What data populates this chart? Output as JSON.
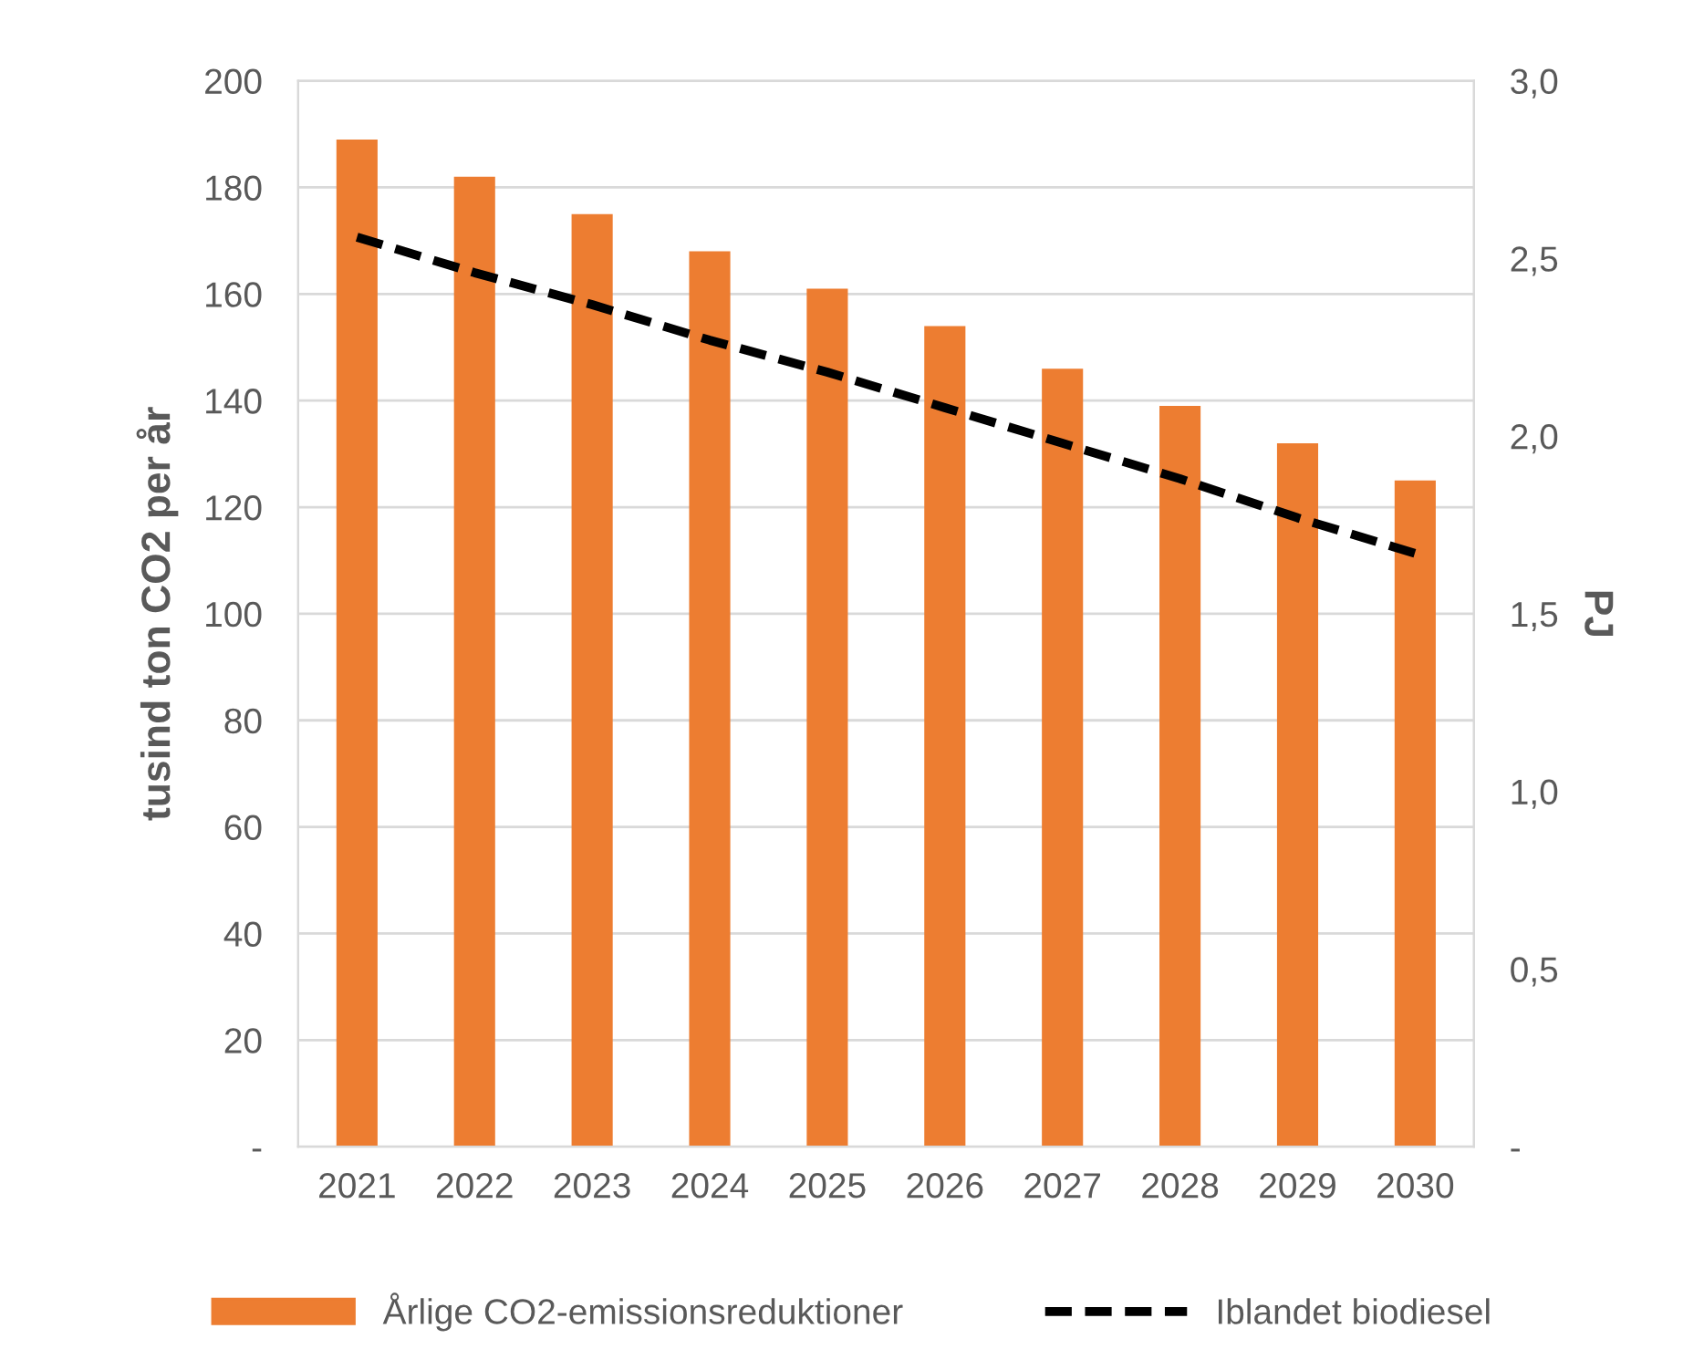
{
  "chart_data": {
    "type": "bar",
    "ylabel": "tusind ton CO2 per år",
    "y2label": "PJ",
    "categories": [
      "2021",
      "2022",
      "2023",
      "2024",
      "2025",
      "2026",
      "2027",
      "2028",
      "2029",
      "2030"
    ],
    "series": [
      {
        "name": "Årlige CO2-emissionsreduktioner",
        "color": "#ed7d31",
        "values": [
          189,
          182,
          175,
          168,
          161,
          154,
          146,
          139,
          132,
          125
        ]
      },
      {
        "name": "Iblandet biodiesel",
        "type": "line",
        "axis": "y2",
        "color": "#000000",
        "line_style": "dashed",
        "marker": "none",
        "values": [
          2.56,
          2.46,
          2.37,
          2.27,
          2.18,
          2.08,
          1.98,
          1.88,
          1.77,
          1.67
        ]
      }
    ],
    "ylim": [
      0,
      200
    ],
    "yticks": [
      {
        "value": 0,
        "label": "-"
      },
      20,
      40,
      60,
      80,
      100,
      120,
      140,
      160,
      180,
      200
    ],
    "y2lim": [
      0,
      3
    ],
    "y2ticks": [
      {
        "value": 0,
        "label": "-"
      },
      {
        "value": 0.5,
        "label": "0,5"
      },
      {
        "value": 1,
        "label": "1,0"
      },
      {
        "value": 1.5,
        "label": "1,5"
      },
      {
        "value": 2,
        "label": "2,0"
      },
      {
        "value": 2.5,
        "label": "2,5"
      },
      {
        "value": 3,
        "label": "3,0"
      }
    ],
    "grid": "y",
    "legend": "bottom"
  }
}
